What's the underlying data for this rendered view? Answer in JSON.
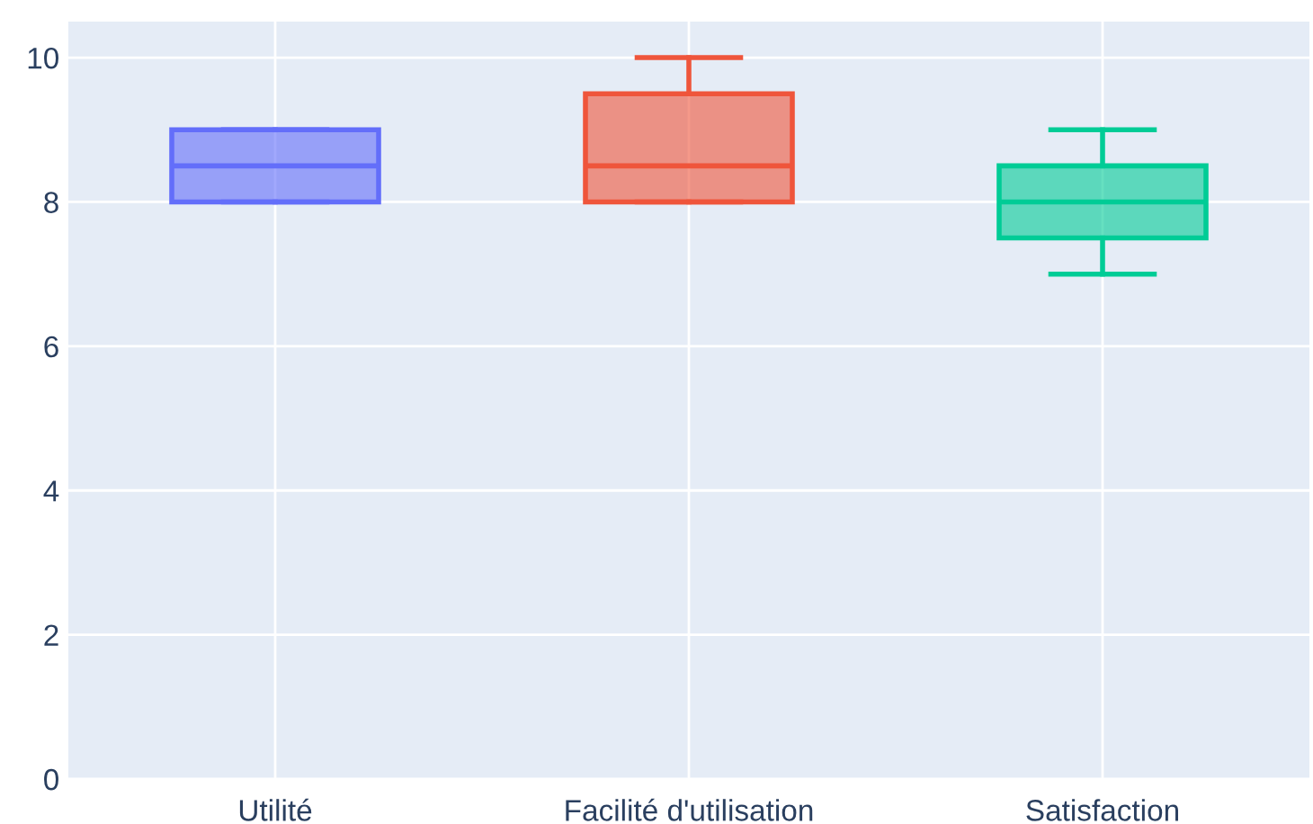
{
  "chart_data": {
    "type": "box",
    "categories": [
      "Utilité",
      "Facilité d'utilisation",
      "Satisfaction"
    ],
    "colors": [
      "#636efa",
      "#ef553b",
      "#00cc96"
    ],
    "boxes": [
      {
        "low": 8,
        "q1": 8,
        "median": 8.5,
        "q3": 9,
        "high": 9
      },
      {
        "low": 8,
        "q1": 8,
        "median": 8.5,
        "q3": 9.5,
        "high": 10
      },
      {
        "low": 7,
        "q1": 7.5,
        "median": 8,
        "q3": 8.5,
        "high": 9
      }
    ],
    "ylim": [
      0,
      10.5
    ],
    "yticks": [
      0,
      2,
      4,
      6,
      8,
      10
    ],
    "grid": true
  }
}
